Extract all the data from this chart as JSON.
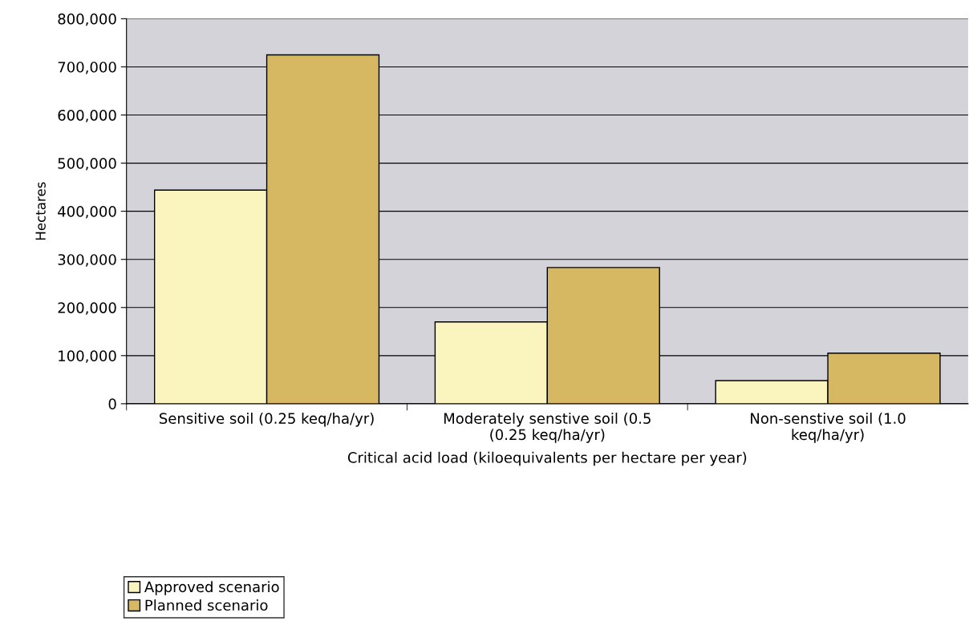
{
  "chart_data": {
    "type": "bar",
    "xlabel": "Critical acid load (kiloequivalents per hectare per year)",
    "ylabel": "Hectares",
    "categories": [
      "Sensitive soil (0.25 keq/ha/yr)",
      "Moderately senstive soil (0.5\n(0.25 keq/ha/yr)",
      "Non-senstive soil (1.0\nkeq/ha/yr)"
    ],
    "series": [
      {
        "name": "Approved scenario",
        "color": "#faf5be",
        "values": [
          444000,
          170000,
          48000
        ]
      },
      {
        "name": "Planned scenario",
        "color": "#d7b862",
        "values": [
          725000,
          283000,
          105000
        ]
      }
    ],
    "ylim": [
      0,
      800000
    ],
    "yticks": [
      {
        "value": 0,
        "label": "0"
      },
      {
        "value": 100000,
        "label": "100,000"
      },
      {
        "value": 200000,
        "label": "200,000"
      },
      {
        "value": 300000,
        "label": "300,000"
      },
      {
        "value": 400000,
        "label": "400,000"
      },
      {
        "value": 500000,
        "label": "500,000"
      },
      {
        "value": 600000,
        "label": "600,000"
      },
      {
        "value": 700000,
        "label": "700,000"
      },
      {
        "value": 800000,
        "label": "800,000"
      }
    ],
    "grid": "y",
    "legend": "bottom left"
  }
}
